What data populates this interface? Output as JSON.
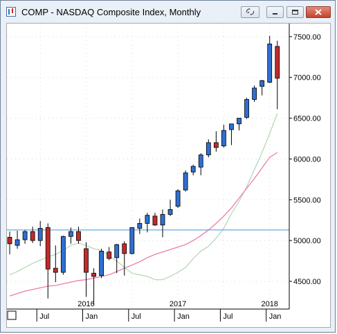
{
  "window": {
    "title": "COMP - NASDAQ Composite Index, Monthly",
    "icons": [
      "app-icon",
      "link-icon",
      "minimize-icon",
      "maximize-icon",
      "close-icon"
    ]
  },
  "chart_data": {
    "type": "candlestick",
    "title": "COMP - NASDAQ Composite Index, Monthly",
    "ylim": [
      4160,
      7660
    ],
    "y_ticks": [
      "4500.00",
      "5000.00",
      "5500.00",
      "6000.00",
      "6500.00",
      "7000.00",
      "7500.00"
    ],
    "x_ticks": [
      "Jul",
      "Jan",
      "Jul",
      "Jan",
      "Jul",
      "Jan"
    ],
    "year_labels": [
      {
        "label": "2016",
        "at_month": "2016-01"
      },
      {
        "label": "2017",
        "at_month": "2017-01"
      },
      {
        "label": "2018",
        "at_month": "2018-01"
      }
    ],
    "horizontal_line": {
      "value": 5130,
      "color": "#3d9ad8"
    },
    "up_color": "#2f6fd0",
    "down_color": "#c32a2a",
    "candles": [
      {
        "month": "2015-03",
        "open": 5040,
        "high": 5110,
        "low": 4830,
        "close": 4960
      },
      {
        "month": "2015-04",
        "open": 4940,
        "high": 5120,
        "low": 4900,
        "close": 5010
      },
      {
        "month": "2015-05",
        "open": 5010,
        "high": 5130,
        "low": 4960,
        "close": 5110
      },
      {
        "month": "2015-06",
        "open": 5110,
        "high": 5170,
        "low": 4970,
        "close": 5000
      },
      {
        "month": "2015-07",
        "open": 5000,
        "high": 5240,
        "low": 4930,
        "close": 5150
      },
      {
        "month": "2015-08",
        "open": 5160,
        "high": 5210,
        "low": 4290,
        "close": 4650
      },
      {
        "month": "2015-09",
        "open": 4660,
        "high": 4940,
        "low": 4490,
        "close": 4610
      },
      {
        "month": "2015-10",
        "open": 4610,
        "high": 5060,
        "low": 4580,
        "close": 5050
      },
      {
        "month": "2015-11",
        "open": 5050,
        "high": 5160,
        "low": 4960,
        "close": 5110
      },
      {
        "month": "2015-12",
        "open": 5110,
        "high": 5170,
        "low": 4960,
        "close": 5000
      },
      {
        "month": "2016-01",
        "open": 4900,
        "high": 4980,
        "low": 4310,
        "close": 4610
      },
      {
        "month": "2016-02",
        "open": 4600,
        "high": 4660,
        "low": 4210,
        "close": 4560
      },
      {
        "month": "2016-03",
        "open": 4570,
        "high": 4900,
        "low": 4540,
        "close": 4870
      },
      {
        "month": "2016-04",
        "open": 4860,
        "high": 4920,
        "low": 4760,
        "close": 4780
      },
      {
        "month": "2016-05",
        "open": 4790,
        "high": 4960,
        "low": 4600,
        "close": 4950
      },
      {
        "month": "2016-06",
        "open": 4960,
        "high": 4990,
        "low": 4570,
        "close": 4840
      },
      {
        "month": "2016-07",
        "open": 4840,
        "high": 5160,
        "low": 4830,
        "close": 5160
      },
      {
        "month": "2016-08",
        "open": 5150,
        "high": 5270,
        "low": 5080,
        "close": 5210
      },
      {
        "month": "2016-09",
        "open": 5210,
        "high": 5340,
        "low": 5100,
        "close": 5310
      },
      {
        "month": "2016-10",
        "open": 5300,
        "high": 5340,
        "low": 5180,
        "close": 5190
      },
      {
        "month": "2016-11",
        "open": 5190,
        "high": 5380,
        "low": 5040,
        "close": 5320
      },
      {
        "month": "2016-12",
        "open": 5320,
        "high": 5500,
        "low": 5300,
        "close": 5380
      },
      {
        "month": "2017-01",
        "open": 5420,
        "high": 5630,
        "low": 5400,
        "close": 5610
      },
      {
        "month": "2017-02",
        "open": 5620,
        "high": 5860,
        "low": 5600,
        "close": 5830
      },
      {
        "month": "2017-03",
        "open": 5840,
        "high": 5930,
        "low": 5800,
        "close": 5910
      },
      {
        "month": "2017-04",
        "open": 5900,
        "high": 6070,
        "low": 5800,
        "close": 6050
      },
      {
        "month": "2017-05",
        "open": 6050,
        "high": 6240,
        "low": 6020,
        "close": 6200
      },
      {
        "month": "2017-06",
        "open": 6200,
        "high": 6340,
        "low": 6090,
        "close": 6140
      },
      {
        "month": "2017-07",
        "open": 6160,
        "high": 6420,
        "low": 6140,
        "close": 6350
      },
      {
        "month": "2017-08",
        "open": 6360,
        "high": 6430,
        "low": 6170,
        "close": 6430
      },
      {
        "month": "2017-09",
        "open": 6430,
        "high": 6500,
        "low": 6350,
        "close": 6500
      },
      {
        "month": "2017-10",
        "open": 6510,
        "high": 6750,
        "low": 6490,
        "close": 6730
      },
      {
        "month": "2017-11",
        "open": 6730,
        "high": 6900,
        "low": 6700,
        "close": 6870
      },
      {
        "month": "2017-12",
        "open": 6890,
        "high": 6970,
        "low": 6780,
        "close": 6960
      },
      {
        "month": "2018-01",
        "open": 6940,
        "high": 7510,
        "low": 6930,
        "close": 7410
      },
      {
        "month": "2018-02",
        "open": 7380,
        "high": 7450,
        "low": 6610,
        "close": 6990
      }
    ],
    "moving_averages": [
      {
        "color": "#b6d9b6",
        "values": [
          4580,
          4620,
          4670,
          4720,
          4760,
          4800,
          4830,
          4880,
          4940,
          4970,
          4940,
          4900,
          4880,
          4810,
          4750,
          4670,
          4600,
          4580,
          4560,
          4520,
          4520,
          4560,
          4610,
          4670,
          4780,
          4870,
          4930,
          5030,
          5150,
          5330,
          5480,
          5660,
          5870,
          6080,
          6310,
          6560
        ]
      },
      {
        "color": "#ee7ba8",
        "values": [
          4320,
          4350,
          4380,
          4400,
          4420,
          4440,
          4450,
          4470,
          4490,
          4510,
          4520,
          4540,
          4560,
          4580,
          4620,
          4660,
          4700,
          4740,
          4790,
          4830,
          4860,
          4890,
          4920,
          4950,
          5000,
          5060,
          5130,
          5210,
          5300,
          5400,
          5520,
          5640,
          5760,
          5890,
          6020,
          6080
        ]
      }
    ]
  }
}
